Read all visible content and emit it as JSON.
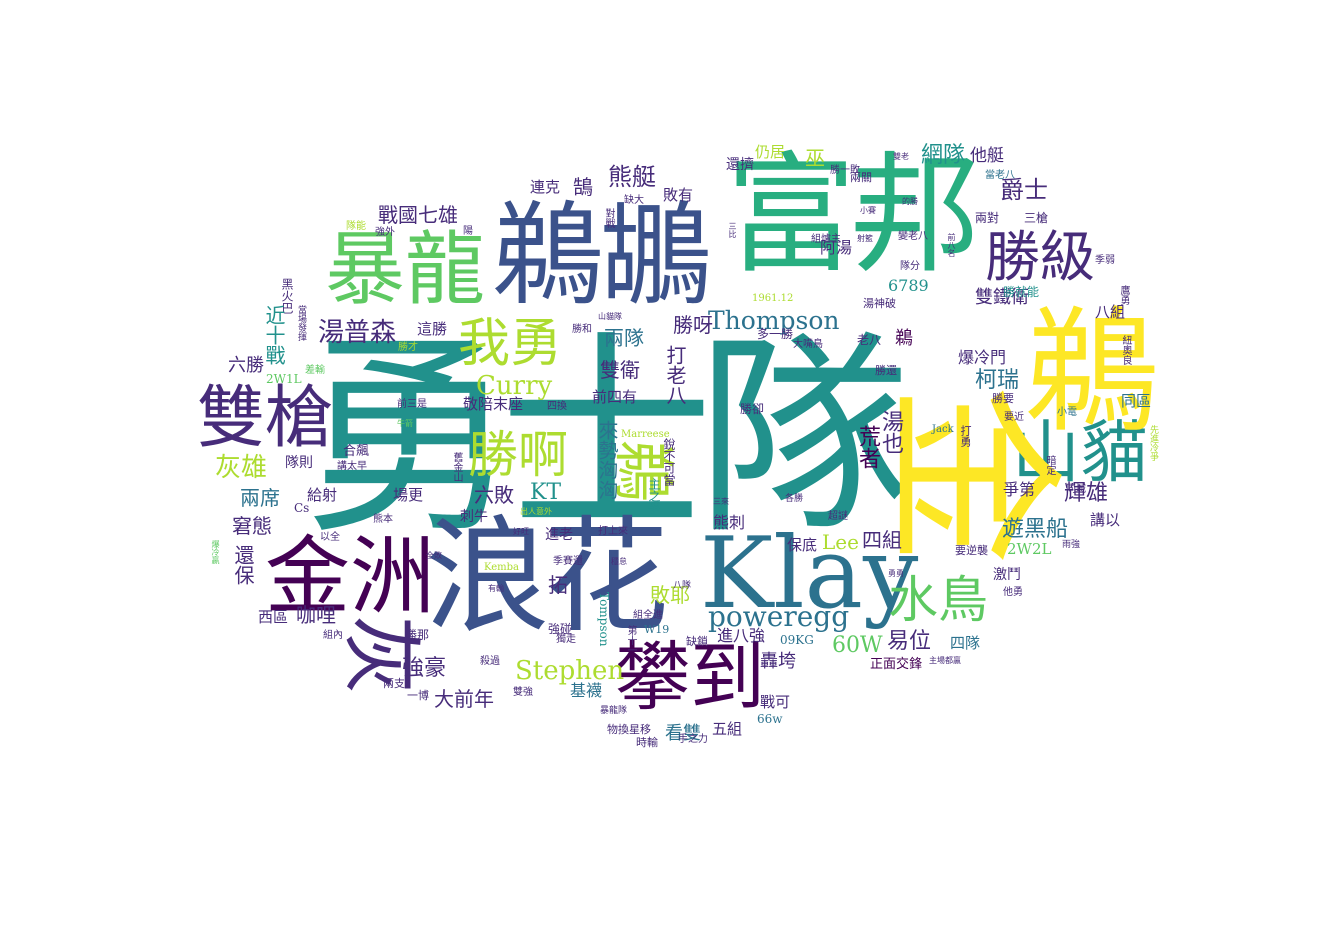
{
  "palette": [
    "#440154",
    "#472c7a",
    "#3b528b",
    "#2c728e",
    "#21918c",
    "#28ae80",
    "#5ec962",
    "#addc30",
    "#fde725"
  ],
  "words": [
    {
      "text": "勇士隊"
    },
    {
      "text": "富邦"
    },
    {
      "text": "鵜鶘"
    },
    {
      "text": "浪花"
    },
    {
      "text": "Klay"
    },
    {
      "text": "暴龍"
    },
    {
      "text": "金洲"
    },
    {
      "text": "攀到"
    },
    {
      "text": "雙槍"
    },
    {
      "text": "山貓"
    },
    {
      "text": "勝級"
    },
    {
      "text": "我勇"
    },
    {
      "text": "勝啊"
    },
    {
      "text": "水鳥"
    },
    {
      "text": "湯普森"
    },
    {
      "text": "Thompson"
    },
    {
      "text": "poweregg"
    },
    {
      "text": "Curry"
    },
    {
      "text": "Stephen"
    },
    {
      "text": "灰雄"
    },
    {
      "text": "戰國七雄"
    },
    {
      "text": "熊艇"
    },
    {
      "text": "網隊"
    },
    {
      "text": "他艇"
    },
    {
      "text": "爵士"
    },
    {
      "text": "雙鐵衛"
    },
    {
      "text": "柯瑞"
    },
    {
      "text": "輝雄"
    },
    {
      "text": "遊黑船"
    },
    {
      "text": "四組"
    },
    {
      "text": "易位"
    },
    {
      "text": "60W"
    },
    {
      "text": "強豪"
    },
    {
      "text": "大前年"
    },
    {
      "text": "咖哩"
    },
    {
      "text": "兩席"
    },
    {
      "text": "給射"
    },
    {
      "text": "場更"
    },
    {
      "text": "六敗"
    },
    {
      "text": "KT"
    },
    {
      "text": "雙衛"
    },
    {
      "text": "兩隊"
    },
    {
      "text": "勝呀"
    },
    {
      "text": "敗耶"
    },
    {
      "text": "拓"
    },
    {
      "text": "Lee"
    },
    {
      "text": "爆冷門"
    },
    {
      "text": "6789"
    },
    {
      "text": "這勝"
    },
    {
      "text": "窘態"
    },
    {
      "text": "隊則"
    },
    {
      "text": "六勝"
    },
    {
      "text": "敬陪末座"
    },
    {
      "text": "前四有"
    },
    {
      "text": "敗有"
    },
    {
      "text": "連克"
    },
    {
      "text": "鵠"
    },
    {
      "text": "巫"
    },
    {
      "text": "仍居"
    },
    {
      "text": "還擠"
    },
    {
      "text": "阿湯"
    },
    {
      "text": "八組"
    },
    {
      "text": "同區"
    },
    {
      "text": "講以"
    },
    {
      "text": "2W2L"
    },
    {
      "text": "激鬥"
    },
    {
      "text": "保底"
    },
    {
      "text": "熊刺"
    },
    {
      "text": "進八強"
    },
    {
      "text": "四隊"
    },
    {
      "text": "基襪"
    },
    {
      "text": "戰可"
    },
    {
      "text": "看雙"
    },
    {
      "text": "五組"
    },
    {
      "text": "西區"
    },
    {
      "text": "刺牛"
    },
    {
      "text": "進老"
    },
    {
      "text": "爭第"
    },
    {
      "text": "轟垮"
    },
    {
      "text": "09KG"
    },
    {
      "text": "正面交鋒"
    },
    {
      "text": "W19"
    },
    {
      "text": "勝那"
    },
    {
      "text": "Cs"
    },
    {
      "text": "以全"
    },
    {
      "text": "熊本"
    },
    {
      "text": "強碰"
    },
    {
      "text": "Tompson"
    },
    {
      "text": "勝卻"
    },
    {
      "text": "勝還"
    },
    {
      "text": "勝要"
    },
    {
      "text": "要逆襲"
    },
    {
      "text": "合飆"
    },
    {
      "text": "講太早"
    },
    {
      "text": "前三是"
    },
    {
      "text": "四換"
    },
    {
      "text": "差輸"
    },
    {
      "text": "2W1L"
    },
    {
      "text": "黑火巴"
    },
    {
      "text": "強外"
    },
    {
      "text": "隊能"
    },
    {
      "text": "多一勝"
    },
    {
      "text": "勝和"
    },
    {
      "text": "大嘴鳥"
    },
    {
      "text": "老八"
    },
    {
      "text": "湯神破"
    },
    {
      "text": "勝就能"
    },
    {
      "text": "兩對"
    },
    {
      "text": "三槍"
    },
    {
      "text": "當老八"
    },
    {
      "text": "雙老"
    },
    {
      "text": "季弱"
    },
    {
      "text": "鷹勇"
    },
    {
      "text": "紐奧良"
    },
    {
      "text": "小電"
    },
    {
      "text": "要近"
    },
    {
      "text": "同城"
    },
    {
      "text": "雨強"
    },
    {
      "text": "超謎"
    },
    {
      "text": "各勝"
    },
    {
      "text": "Jack"
    },
    {
      "text": "打勇"
    },
    {
      "text": "勝一敗"
    },
    {
      "text": "兩關"
    },
    {
      "text": "組爐主"
    },
    {
      "text": "隊分"
    },
    {
      "text": "小賽"
    },
    {
      "text": "的勝"
    },
    {
      "text": "變老八"
    },
    {
      "text": "1961.12"
    },
    {
      "text": "Marreese"
    },
    {
      "text": "Kemba"
    },
    {
      "text": "物換星移"
    },
    {
      "text": "時輸"
    },
    {
      "text": "手之力"
    },
    {
      "text": "66w"
    },
    {
      "text": "暴龍隊"
    },
    {
      "text": "雙強"
    },
    {
      "text": "一博"
    },
    {
      "text": "兩支"
    },
    {
      "text": "殺過"
    },
    {
      "text": "組內"
    },
    {
      "text": "缺鎖"
    },
    {
      "text": "獨走"
    },
    {
      "text": "季賽還"
    },
    {
      "text": "組全進"
    },
    {
      "text": "打上來"
    },
    {
      "text": "山貓隊"
    },
    {
      "text": "勇勇"
    },
    {
      "text": "他勇"
    },
    {
      "text": "主場都贏"
    },
    {
      "text": "湯也"
    },
    {
      "text": "荒者"
    },
    {
      "text": "打老八"
    },
    {
      "text": "來勢洶洶"
    },
    {
      "text": "近十戰"
    },
    {
      "text": "還保"
    },
    {
      "text": "鵜"
    },
    {
      "text": "主之爭"
    },
    {
      "text": "銳不可當"
    },
    {
      "text": "第十一"
    },
    {
      "text": "八隊"
    },
    {
      "text": "舊金山"
    },
    {
      "text": "好旺"
    },
    {
      "text": "出人意外"
    },
    {
      "text": "缺大"
    },
    {
      "text": "對戰"
    },
    {
      "text": "陽"
    },
    {
      "text": "牛箭"
    },
    {
      "text": "勝才"
    },
    {
      "text": "當場發揮"
    },
    {
      "text": "爆冷贏"
    },
    {
      "text": "全敗"
    },
    {
      "text": "有輸"
    },
    {
      "text": "先進冷爭"
    },
    {
      "text": "暗定"
    },
    {
      "text": "射籃"
    },
    {
      "text": "前八名"
    },
    {
      "text": "三來"
    },
    {
      "text": "穩怠"
    },
    {
      "text": "三比"
    }
  ]
}
